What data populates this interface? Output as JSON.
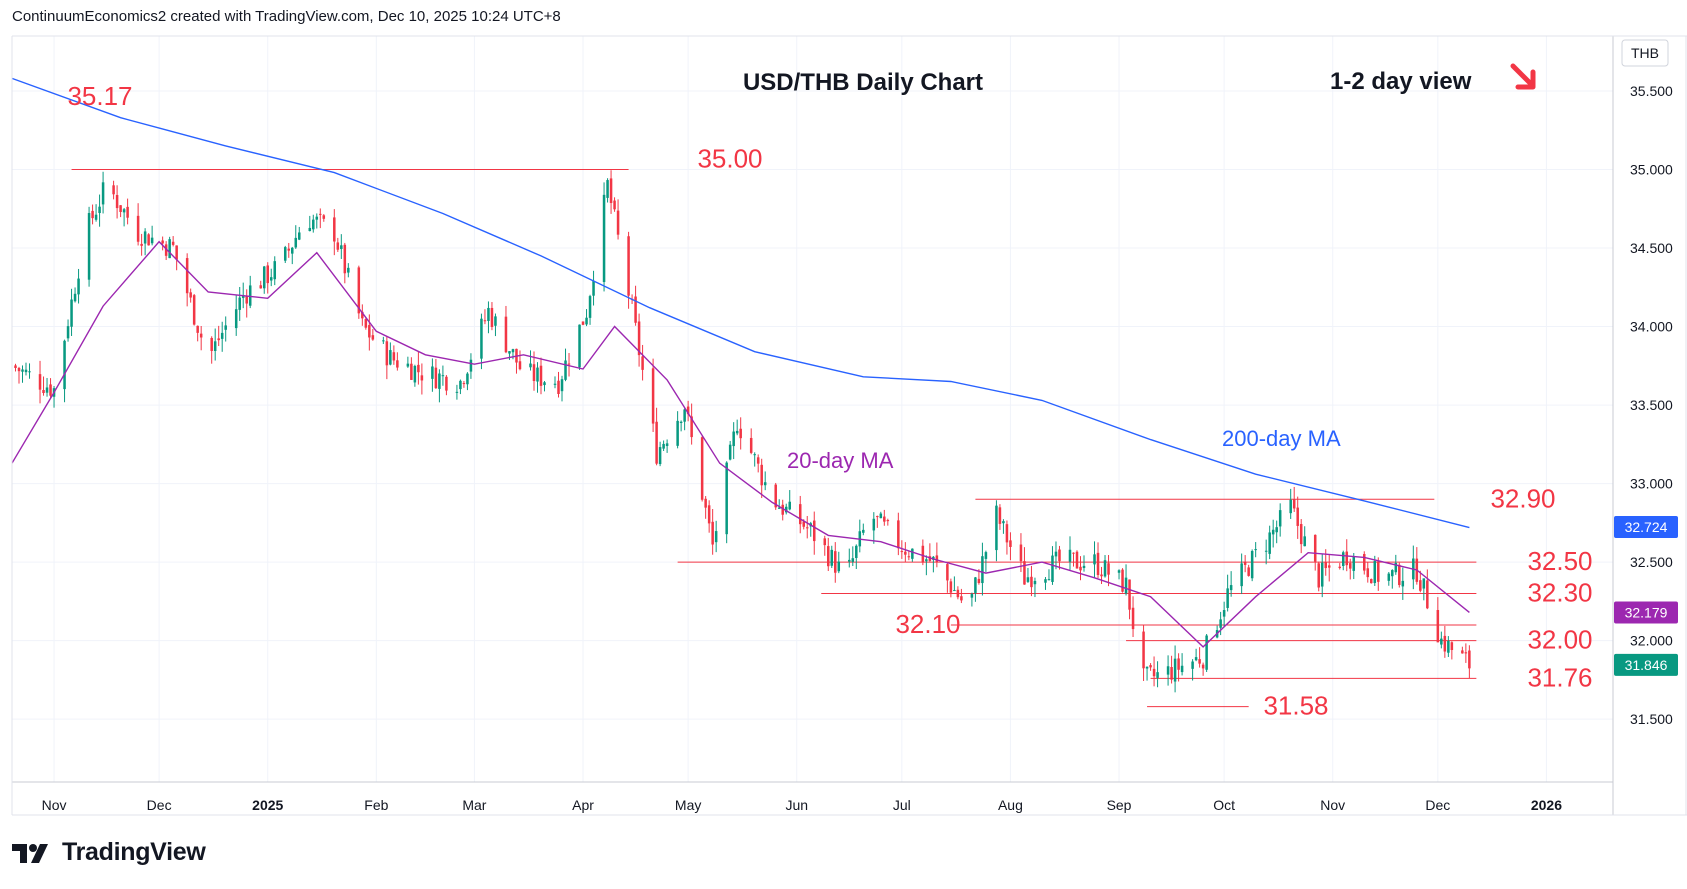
{
  "header": "ContinuumEconomics2 created with TradingView.com, Dec 10, 2025 10:24 UTC+8",
  "brand": "TradingView",
  "chart_data": {
    "type": "candlestick",
    "title": "USD/THB Daily Chart",
    "view_label": "1-2 day view",
    "view_direction": "down",
    "currency_label": "THB",
    "ylim": [
      31.1,
      35.85
    ],
    "y_ticks": [
      "35.500",
      "35.000",
      "34.500",
      "34.000",
      "33.500",
      "33.000",
      "32.500",
      "32.000",
      "31.500"
    ],
    "x_ticks": [
      "Nov",
      "Dec",
      "2025",
      "Feb",
      "Mar",
      "Apr",
      "May",
      "Jun",
      "Jul",
      "Aug",
      "Sep",
      "Oct",
      "Nov",
      "Dec",
      "2026"
    ],
    "x_domain": [
      "2024-10-20",
      "2026-01-20"
    ],
    "grid": true,
    "levels": [
      {
        "label": "35.17",
        "value": 35.17,
        "line": false
      },
      {
        "label": "35.00",
        "value": 35.0,
        "start": "2024-11-06",
        "end": "2025-04-14",
        "line": true
      },
      {
        "label": "32.90",
        "value": 32.9,
        "start": "2025-07-22",
        "end": "2025-11-30",
        "line": true
      },
      {
        "label": "32.50",
        "value": 32.5,
        "start": "2025-04-28",
        "end": "2025-12-12",
        "line": true
      },
      {
        "label": "32.30",
        "value": 32.3,
        "start": "2025-06-08",
        "end": "2025-12-12",
        "line": true
      },
      {
        "label": "32.10",
        "value": 32.1,
        "start": "2025-07-15",
        "end": "2025-12-12",
        "line": true
      },
      {
        "label": "32.00",
        "value": 32.0,
        "start": "2025-09-03",
        "end": "2025-12-12",
        "line": true
      },
      {
        "label": "31.76",
        "value": 31.76,
        "start": "2025-09-10",
        "end": "2025-12-12",
        "line": true
      },
      {
        "label": "31.58",
        "value": 31.58,
        "start": "2025-09-09",
        "end": "2025-10-08",
        "line": true
      }
    ],
    "series": [
      {
        "name": "200-day MA",
        "color": "#2962ff",
        "x": [
          "2024-10-20",
          "2024-11-20",
          "2024-12-20",
          "2025-01-20",
          "2025-02-20",
          "2025-03-20",
          "2025-04-20",
          "2025-05-20",
          "2025-06-20",
          "2025-07-15",
          "2025-08-10",
          "2025-09-10",
          "2025-10-10",
          "2025-11-10",
          "2025-12-10"
        ],
        "values": [
          35.58,
          35.33,
          35.15,
          34.98,
          34.72,
          34.45,
          34.12,
          33.84,
          33.68,
          33.65,
          33.53,
          33.28,
          33.06,
          32.89,
          32.72
        ]
      },
      {
        "name": "20-day MA",
        "color": "#9c27b0",
        "x": [
          "2024-10-20",
          "2024-11-01",
          "2024-11-15",
          "2024-12-01",
          "2024-12-15",
          "2025-01-01",
          "2025-01-15",
          "2025-02-01",
          "2025-02-15",
          "2025-03-01",
          "2025-03-15",
          "2025-04-01",
          "2025-04-10",
          "2025-04-25",
          "2025-05-10",
          "2025-05-25",
          "2025-06-10",
          "2025-06-25",
          "2025-07-10",
          "2025-07-25",
          "2025-08-10",
          "2025-08-25",
          "2025-09-10",
          "2025-09-25",
          "2025-10-10",
          "2025-10-25",
          "2025-11-10",
          "2025-11-25",
          "2025-12-10"
        ],
        "values": [
          33.13,
          33.58,
          34.13,
          34.54,
          34.22,
          34.18,
          34.47,
          33.97,
          33.82,
          33.76,
          33.82,
          33.73,
          34.0,
          33.66,
          33.13,
          32.88,
          32.67,
          32.63,
          32.52,
          32.43,
          32.5,
          32.4,
          32.28,
          31.96,
          32.28,
          32.56,
          32.53,
          32.45,
          32.18
        ]
      },
      {
        "name": "USD/THB",
        "x": [
          "2024-10-20",
          "2024-11-01",
          "2024-11-10",
          "2024-11-16",
          "2024-11-25",
          "2024-12-05",
          "2024-12-15",
          "2024-12-25",
          "2025-01-05",
          "2025-01-12",
          "2025-01-20",
          "2025-01-28",
          "2025-02-05",
          "2025-02-15",
          "2025-02-25",
          "2025-03-05",
          "2025-03-15",
          "2025-03-25",
          "2025-04-02",
          "2025-04-08",
          "2025-04-15",
          "2025-04-22",
          "2025-04-30",
          "2025-05-08",
          "2025-05-15",
          "2025-05-25",
          "2025-06-05",
          "2025-06-15",
          "2025-06-22",
          "2025-07-01",
          "2025-07-10",
          "2025-07-20",
          "2025-07-28",
          "2025-08-05",
          "2025-08-15",
          "2025-08-25",
          "2025-09-03",
          "2025-09-08",
          "2025-09-15",
          "2025-09-25",
          "2025-10-02",
          "2025-10-12",
          "2025-10-20",
          "2025-10-28",
          "2025-11-05",
          "2025-11-15",
          "2025-11-25",
          "2025-12-02",
          "2025-12-10"
        ],
        "values": [
          33.75,
          33.6,
          34.6,
          34.9,
          34.6,
          34.5,
          33.8,
          34.2,
          34.4,
          34.7,
          34.6,
          34.0,
          33.8,
          33.7,
          33.65,
          34.1,
          33.7,
          33.65,
          34.1,
          34.9,
          34.1,
          33.2,
          33.5,
          32.6,
          33.4,
          32.9,
          32.7,
          32.4,
          32.8,
          32.6,
          32.5,
          32.2,
          32.8,
          32.4,
          32.5,
          32.5,
          32.35,
          31.75,
          31.8,
          31.9,
          32.3,
          32.6,
          32.85,
          32.4,
          32.55,
          32.4,
          32.45,
          32.0,
          31.846
        ]
      }
    ],
    "price_badges": [
      {
        "label": "32.724",
        "value": 32.724,
        "color": "#2962ff"
      },
      {
        "label": "32.179",
        "value": 32.179,
        "color": "#9c27b0"
      },
      {
        "label": "31.846",
        "value": 31.846,
        "color": "#089981"
      }
    ],
    "annotations": [
      {
        "label": "200-day MA",
        "color": "#2962ff"
      },
      {
        "label": "20-day MA",
        "color": "#9c27b0"
      }
    ],
    "colors": {
      "up": "#089981",
      "down": "#f23645",
      "level_line": "#f23645",
      "level_text": "#f23645"
    }
  }
}
